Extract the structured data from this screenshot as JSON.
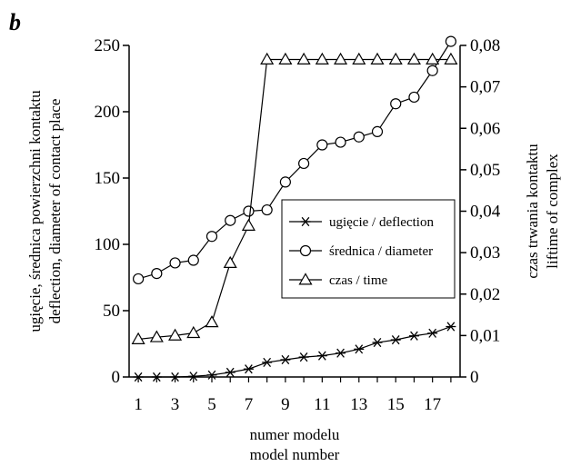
{
  "chart_data": {
    "type": "line",
    "panel_label": "b",
    "xlabel": [
      "numer modelu",
      "model number"
    ],
    "ylabel_left": [
      "ugięcie, średnica powierzchni kontaktu",
      "deflection, diameter of contact place"
    ],
    "ylabel_right": [
      "czas trwania kontaktu",
      "liftime of complex"
    ],
    "x": [
      1,
      2,
      3,
      4,
      5,
      6,
      7,
      8,
      9,
      10,
      11,
      12,
      13,
      14,
      15,
      16,
      17,
      18
    ],
    "x_tick_labels": [
      "1",
      "3",
      "5",
      "7",
      "9",
      "11",
      "13",
      "15",
      "17"
    ],
    "x_tick_values": [
      1,
      3,
      5,
      7,
      9,
      11,
      13,
      15,
      17
    ],
    "xlim": [
      0.5,
      18.5
    ],
    "ylim_left": [
      0,
      250
    ],
    "y_left_ticks": [
      0,
      50,
      100,
      150,
      200,
      250
    ],
    "y_left_tick_labels": [
      "0",
      "50",
      "100",
      "150",
      "200",
      "250"
    ],
    "ylim_right": [
      0,
      0.08
    ],
    "y_right_ticks": [
      0,
      0.01,
      0.02,
      0.03,
      0.04,
      0.05,
      0.06,
      0.07,
      0.08
    ],
    "y_right_tick_labels": [
      "0",
      "0,01",
      "0,02",
      "0,03",
      "0,04",
      "0,05",
      "0,06",
      "0,07",
      "0,08"
    ],
    "grid": false,
    "legend_position": "center-right",
    "series": [
      {
        "name": "ugięcie / deflection",
        "axis": "left",
        "marker": "asterisk",
        "values": [
          0,
          0,
          0,
          0.5,
          1.5,
          3.5,
          6,
          11,
          13,
          15,
          16,
          18,
          21,
          26,
          28,
          31,
          33,
          38
        ]
      },
      {
        "name": "średnica / diameter",
        "axis": "left",
        "marker": "circle",
        "values": [
          74,
          78,
          86,
          88,
          106,
          118,
          125,
          126,
          147,
          161,
          175,
          177,
          181,
          185,
          206,
          211,
          231,
          253
        ]
      },
      {
        "name": "czas / time",
        "axis": "right",
        "marker": "triangle",
        "values": [
          0.0091,
          0.0096,
          0.01,
          0.0106,
          0.0132,
          0.0275,
          0.0365,
          0.0766,
          0.0766,
          0.0766,
          0.0766,
          0.0766,
          0.0766,
          0.0766,
          0.0766,
          0.0766,
          0.0766,
          0.0766
        ]
      }
    ]
  }
}
